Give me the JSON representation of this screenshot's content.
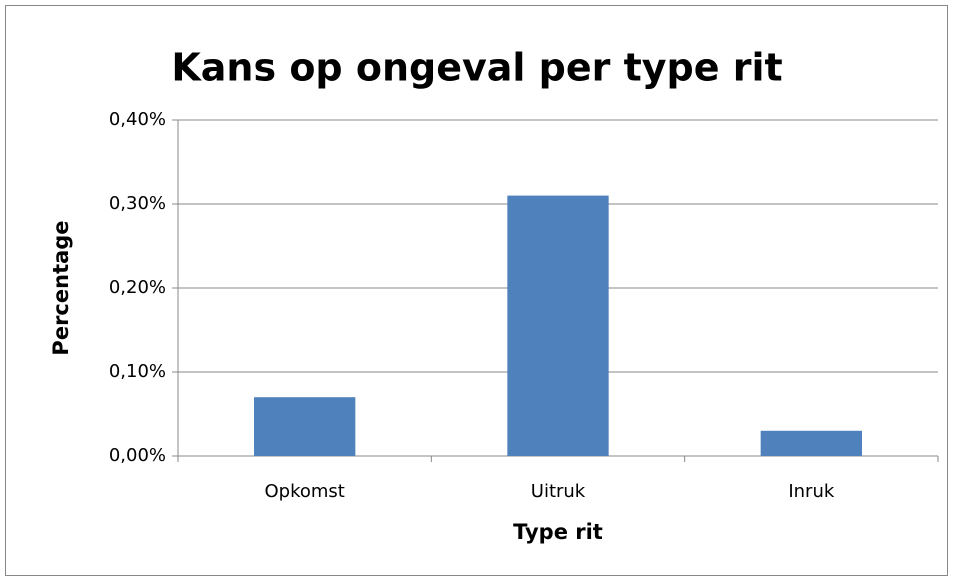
{
  "chart_data": {
    "type": "bar",
    "title": "Kans op ongeval per type rit",
    "x_label": "Type rit",
    "y_label": "Percentage",
    "categories": [
      "Opkomst",
      "Uitruk",
      "Inruk"
    ],
    "values": [
      0.07,
      0.31,
      0.03
    ],
    "color": "#4f81bd",
    "ylim": [
      0,
      0.4
    ],
    "yticks": [
      {
        "value": 0,
        "label": "0,00%"
      },
      {
        "value": 0.1,
        "label": "0,10%"
      },
      {
        "value": 0.2,
        "label": "0,20%"
      },
      {
        "value": 0.3,
        "label": "0,30%"
      },
      {
        "value": 0.4,
        "label": "0,40%"
      }
    ],
    "grid": true
  }
}
